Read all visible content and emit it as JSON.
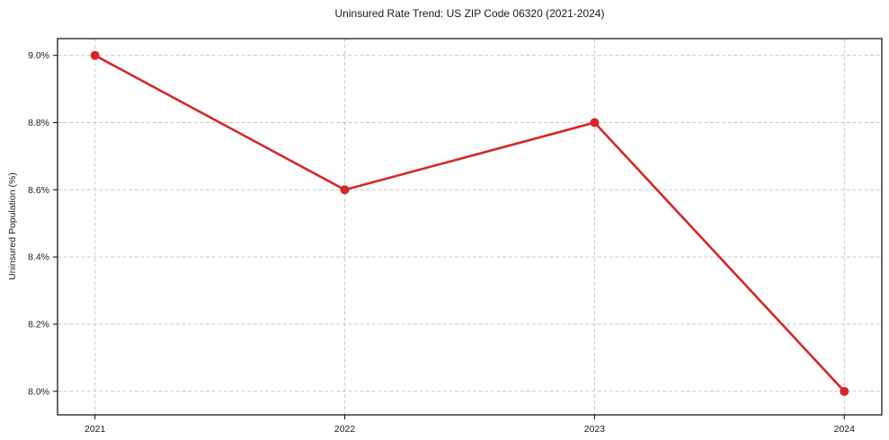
{
  "chart_data": {
    "type": "line",
    "title": "Uninsured Rate Trend: US ZIP Code 06320 (2021-2024)",
    "xlabel": "",
    "ylabel": "Uninsured Population (%)",
    "x": [
      2021,
      2022,
      2023,
      2024
    ],
    "xtick_labels": [
      "2021",
      "2022",
      "2023",
      "2024"
    ],
    "series": [
      {
        "name": "Uninsured Population (%)",
        "values": [
          9.0,
          8.6,
          8.8,
          8.0
        ]
      }
    ],
    "yticks": [
      8.0,
      8.2,
      8.4,
      8.6,
      8.8,
      9.0
    ],
    "ytick_labels": [
      "8.0%",
      "8.2%",
      "8.4%",
      "8.6%",
      "8.8%",
      "9.0%"
    ],
    "ylim": [
      7.93,
      9.05
    ],
    "xlim": [
      2020.85,
      2024.15
    ],
    "grid": true,
    "legend": "none",
    "line_color": "#d62728",
    "marker": "circle",
    "marker_size": 5,
    "grid_color": "#c9c9c9",
    "border_color": "#1a1a1a",
    "background": "#ffffff"
  }
}
